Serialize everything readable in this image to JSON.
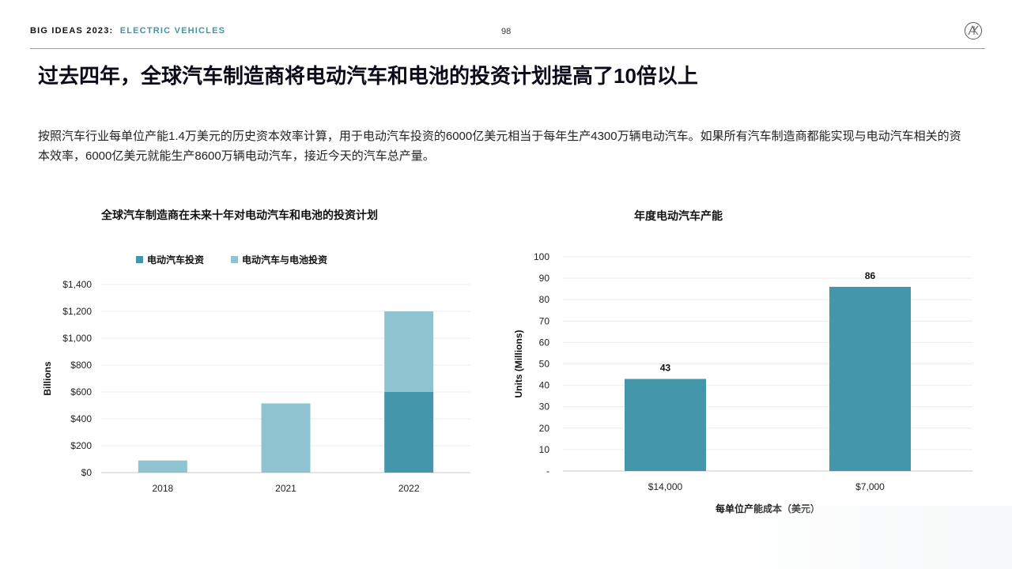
{
  "header": {
    "series": "BIG IDEAS 2023:",
    "topic": "ELECTRIC VEHICLES",
    "page_number": "98",
    "logo_icon": "ark-logo-icon"
  },
  "headline": "过去四年，全球汽车制造商将电动汽车和电池的投资计划提高了10倍以上",
  "body": "按照汽车行业每单位产能1.4万美元的历史资本效率计算，用于电动汽车投资的6000亿美元相当于每年生产4300万辆电动汽车。如果所有汽车制造商都能实现与电动汽车相关的资本效率，6000亿美元就能生产8600万辆电动汽车，接近今天的汽车总产量。",
  "colors": {
    "dark_teal": "#4496aa",
    "light_teal": "#8fc3d0",
    "accent": "#3f96a6"
  },
  "chart_data": [
    {
      "type": "bar",
      "stacked": true,
      "title": "全球汽车制造商在未来十年对电动汽车和电池的投资计划",
      "ylabel": "Billions",
      "xlabel": "",
      "categories": [
        "2018",
        "2021",
        "2022"
      ],
      "ylim": [
        0,
        1400
      ],
      "yticks": [
        "$0",
        "$200",
        "$400",
        "$600",
        "$800",
        "$1,000",
        "$1,200",
        "$1,400"
      ],
      "legend_position": "top",
      "grid": true,
      "series": [
        {
          "name": "电动汽车投资",
          "color": "#4496aa",
          "values": [
            0,
            0,
            600
          ]
        },
        {
          "name": "电动汽车与电池投资",
          "color": "#8fc3d0",
          "values": [
            90,
            515,
            600
          ]
        }
      ]
    },
    {
      "type": "bar",
      "title": "年度电动汽车产能",
      "ylabel": "Units (Millions)",
      "xlabel": "每单位产能成本（美元）",
      "categories": [
        "$14,000",
        "$7,000"
      ],
      "ylim": [
        0,
        100
      ],
      "yticks": [
        "-",
        "10",
        "20",
        "30",
        "40",
        "50",
        "60",
        "70",
        "80",
        "90",
        "100"
      ],
      "grid": true,
      "series": [
        {
          "color": "#4496aa",
          "values": [
            43,
            86
          ],
          "data_labels": [
            "43",
            "86"
          ]
        }
      ]
    }
  ]
}
